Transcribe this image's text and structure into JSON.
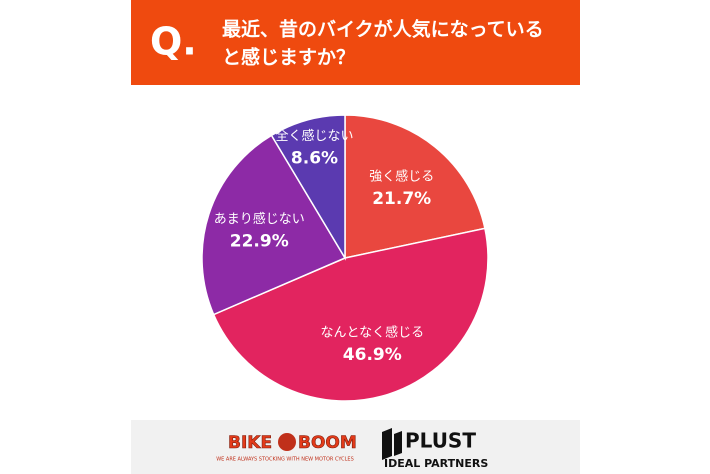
{
  "header": {
    "q_mark": "Q.",
    "question_lines": [
      "最近、昔のバイクが人気になっている",
      "と感じますか？"
    ]
  },
  "chart_data": {
    "type": "pie",
    "categories": [
      "強く感じる",
      "なんとなく感じる",
      "あまり感じない",
      "全く感じない"
    ],
    "values": [
      21.7,
      46.9,
      22.9,
      8.6
    ],
    "value_labels": [
      "21.7%",
      "46.9%",
      "22.9%",
      "8.6%"
    ],
    "colors": [
      "#e9473f",
      "#e2245f",
      "#8d2aa6",
      "#5b3ab0"
    ]
  },
  "footer": {
    "logo1_left": "BIKE",
    "logo1_right": "BOOM",
    "logo1_tagline": "WE ARE ALWAYS STOCKING WITH NEW MOTOR CYCLES",
    "logo2_main": "PLUST",
    "logo2_sub": "IDEAL PARTNERS"
  }
}
